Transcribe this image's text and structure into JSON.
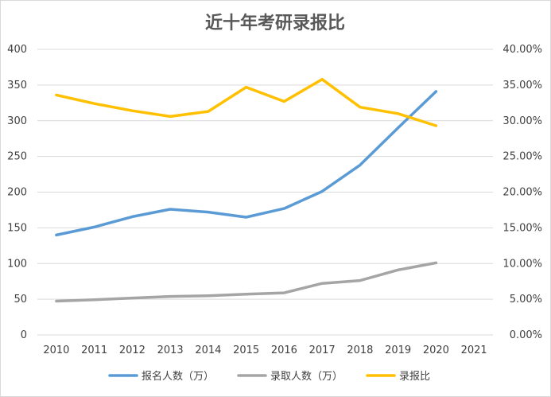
{
  "chart_data": {
    "type": "line",
    "title": "近十年考研录报比",
    "categories": [
      "2010",
      "2011",
      "2012",
      "2013",
      "2014",
      "2015",
      "2016",
      "2017",
      "2018",
      "2019",
      "2020",
      "2021"
    ],
    "y_left": {
      "min": 0,
      "max": 400,
      "step": 50,
      "ticks": [
        "0",
        "50",
        "100",
        "150",
        "200",
        "250",
        "300",
        "350",
        "400"
      ]
    },
    "y_right": {
      "min": 0,
      "max": 0.4,
      "step": 0.05,
      "ticks": [
        "0.00%",
        "5.00%",
        "10.00%",
        "15.00%",
        "20.00%",
        "25.00%",
        "30.00%",
        "35.00%",
        "40.00%"
      ]
    },
    "grid": true,
    "legend_position": "bottom",
    "series": [
      {
        "name": "报名人数（万）",
        "axis": "left",
        "color": "#5b9bd5",
        "values": [
          140,
          151.1,
          165.6,
          176,
          172,
          164.9,
          177,
          201,
          238,
          290,
          341,
          null
        ]
      },
      {
        "name": "录取人数（万）",
        "axis": "left",
        "color": "#a5a5a5",
        "values": [
          47.4,
          49.2,
          51.7,
          53.9,
          54.9,
          57.1,
          58.9,
          72.2,
          76.2,
          91,
          101,
          null
        ]
      },
      {
        "name": "录报比",
        "axis": "right",
        "color": "#ffc000",
        "values": [
          0.336,
          0.324,
          0.314,
          0.306,
          0.313,
          0.347,
          0.327,
          0.358,
          0.319,
          0.31,
          0.293,
          null
        ]
      }
    ]
  }
}
